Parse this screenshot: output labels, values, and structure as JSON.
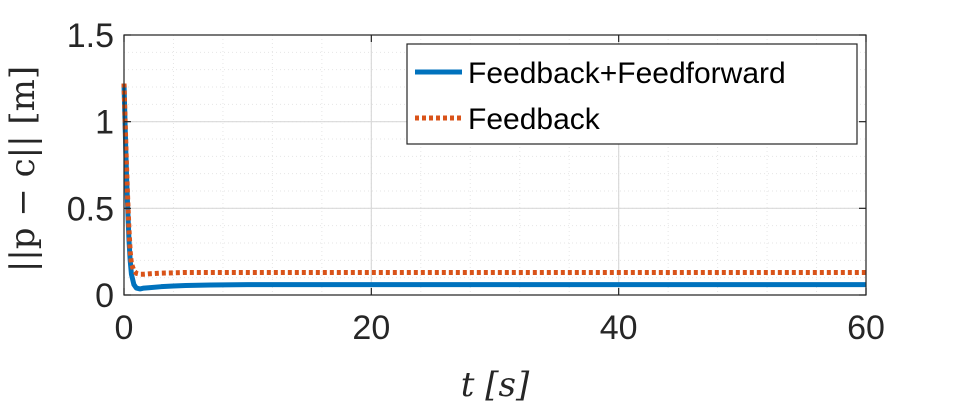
{
  "chart_data": {
    "type": "line",
    "xlabel": "t [s]",
    "ylabel": "||p − c|| [m]",
    "xlim": [
      0,
      60
    ],
    "ylim": [
      0,
      1.5
    ],
    "xticks": [
      0,
      20,
      40,
      60
    ],
    "xtick_labels": [
      "0",
      "20",
      "40",
      "60"
    ],
    "yticks": [
      0,
      0.5,
      1,
      1.5
    ],
    "ytick_labels": [
      "0",
      "0.5",
      "1",
      "1.5"
    ],
    "grid": true,
    "minor_grid": true,
    "legend_position": "top-right",
    "series": [
      {
        "name": "Feedback+Feedforward",
        "color": "#0072BD",
        "style": "solid",
        "x": [
          0,
          0.1,
          0.2,
          0.3,
          0.4,
          0.5,
          0.6,
          0.8,
          1.0,
          1.3,
          1.6,
          2,
          3,
          4,
          5,
          7,
          10,
          20,
          30,
          40,
          50,
          60
        ],
        "y": [
          1.22,
          0.95,
          0.7,
          0.5,
          0.32,
          0.2,
          0.12,
          0.06,
          0.04,
          0.035,
          0.04,
          0.042,
          0.048,
          0.052,
          0.055,
          0.058,
          0.06,
          0.06,
          0.06,
          0.06,
          0.06,
          0.06
        ]
      },
      {
        "name": "Feedback",
        "color": "#D95319",
        "style": "dotted",
        "x": [
          0,
          0.1,
          0.2,
          0.3,
          0.4,
          0.5,
          0.6,
          0.8,
          1.0,
          1.3,
          1.6,
          2,
          3,
          4,
          5,
          7,
          10,
          20,
          30,
          40,
          50,
          60
        ],
        "y": [
          1.22,
          0.98,
          0.75,
          0.55,
          0.38,
          0.25,
          0.18,
          0.14,
          0.125,
          0.12,
          0.12,
          0.122,
          0.126,
          0.128,
          0.13,
          0.13,
          0.13,
          0.13,
          0.13,
          0.13,
          0.13,
          0.13
        ]
      }
    ]
  }
}
